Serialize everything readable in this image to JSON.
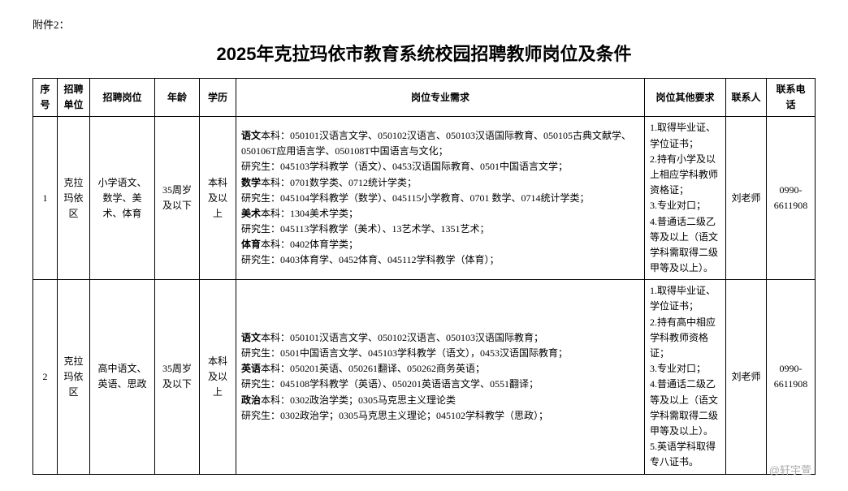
{
  "attachment_label": "附件2：",
  "title": "2025年克拉玛依市教育系统校园招聘教师岗位及条件",
  "headers": {
    "idx": "序号",
    "unit": "招聘单位",
    "post": "招聘岗位",
    "age": "年龄",
    "edu": "学历",
    "major": "岗位专业需求",
    "other": "岗位其他要求",
    "contact": "联系人",
    "phone": "联系电话"
  },
  "rows": [
    {
      "idx": "1",
      "unit": "克拉玛依区",
      "post": "小学语文、数学、美术、体育",
      "age": "35周岁及以下",
      "edu": "本科及以上",
      "major": "语文本科：050101汉语言文学、050102汉语言、050103汉语国际教育、050105古典文献学、050106T应用语言学、050108T中国语言与文化；\n研究生：045103学科教学（语文）、0453汉语国际教育、0501中国语言文学；\n数学本科：0701数学类、0712统计学类；\n研究生：045104学科教学（数学）、045115小学教育、0701 数学、0714统计学类；\n美术本科：1304美术学类；\n研究生：045113学科教学（美术）、13艺术学、1351艺术；\n体育本科：0402体育学类；\n研究生：0403体育学、0452体育、045112学科教学（体育）；",
      "other": "1.取得毕业证、学位证书；\n2.持有小学及以上相应学科教师资格证；\n3.专业对口；\n4.普通话二级乙等及以上（语文学科需取得二级甲等及以上）。",
      "contact": "刘老师",
      "phone": "0990-6611908"
    },
    {
      "idx": "2",
      "unit": "克拉玛依区",
      "post": "高中语文、英语、思政",
      "age": "35周岁及以下",
      "edu": "本科及以上",
      "major": "语文本科：050101汉语言文学、050102汉语言、050103汉语国际教育；\n研究生：0501中国语言文学、045103学科教学（语文），0453汉语国际教育；\n英语本科：050201英语、050261翻译、050262商务英语；\n研究生：045108学科教学（英语）、050201英语语言文学、0551翻译；\n政治本科：0302政治学类；0305马克思主义理论类\n研究生：0302政治学；0305马克思主义理论；045102学科教学（思政）；",
      "other": "1.取得毕业证、学位证书；\n2.持有高中相应学科教师资格证；\n3.专业对口；\n4.普通话二级乙等及以上（语文学科需取得二级甲等及以上）。\n5.英语学科取得专八证书。",
      "contact": "刘老师",
      "phone": "0990-6611908"
    }
  ],
  "watermark": "@轩宇萱"
}
